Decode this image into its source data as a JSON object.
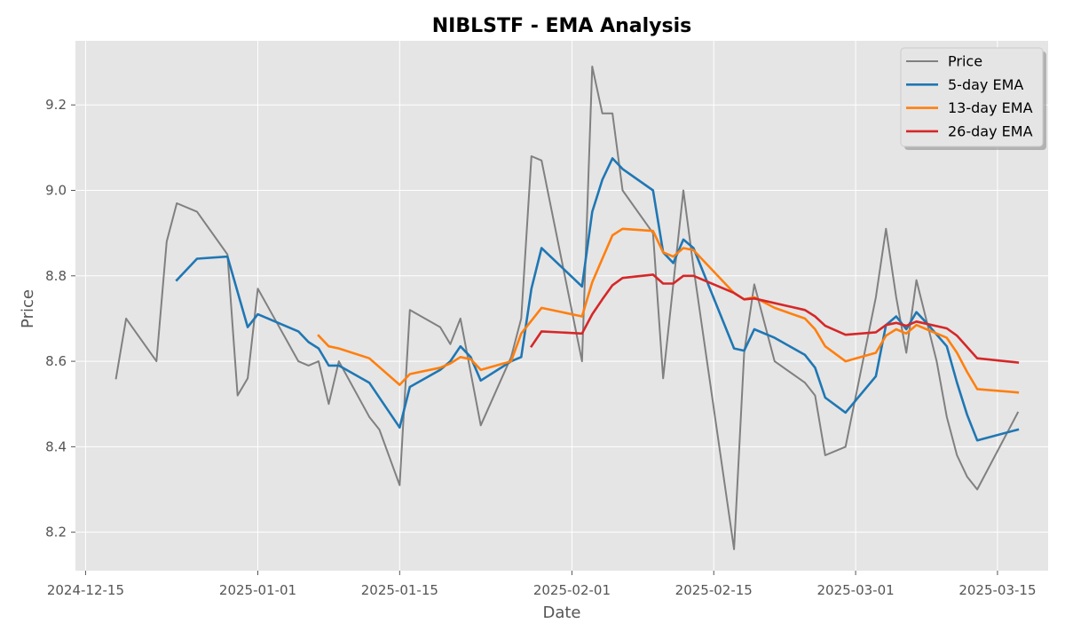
{
  "chart_data": {
    "type": "line",
    "title": "NIBLSTF - EMA Analysis",
    "xlabel": "Date",
    "ylabel": "Price",
    "x_tick_labels": [
      {
        "date": "2024-12-15",
        "label": "2024-12-15"
      },
      {
        "date": "2025-01-01",
        "label": "2025-01-01"
      },
      {
        "date": "2025-01-15",
        "label": "2025-01-15"
      },
      {
        "date": "2025-02-01",
        "label": "2025-02-01"
      },
      {
        "date": "2025-02-15",
        "label": "2025-02-15"
      },
      {
        "date": "2025-03-01",
        "label": "2025-03-01"
      },
      {
        "date": "2025-03-15",
        "label": "2025-03-15"
      }
    ],
    "y_ticks": [
      {
        "value": 8.2,
        "label": "8.2"
      },
      {
        "value": 8.4,
        "label": "8.4"
      },
      {
        "value": 8.6,
        "label": "8.6"
      },
      {
        "value": 8.8,
        "label": "8.8"
      },
      {
        "value": 9.0,
        "label": "9.0"
      },
      {
        "value": 9.2,
        "label": "9.2"
      }
    ],
    "xlim": [
      "2024-12-14",
      "2025-03-20"
    ],
    "ylim": [
      8.11,
      9.35
    ],
    "grid": true,
    "legend_position": "top-right",
    "series": [
      {
        "name": "Price",
        "color": "#808080",
        "points": [
          [
            "2024-12-18",
            8.56
          ],
          [
            "2024-12-19",
            8.7
          ],
          [
            "2024-12-22",
            8.6
          ],
          [
            "2024-12-23",
            8.88
          ],
          [
            "2024-12-24",
            8.97
          ],
          [
            "2024-12-26",
            8.95
          ],
          [
            "2024-12-29",
            8.85
          ],
          [
            "2024-12-30",
            8.52
          ],
          [
            "2024-12-31",
            8.56
          ],
          [
            "2025-01-01",
            8.77
          ],
          [
            "2025-01-05",
            8.6
          ],
          [
            "2025-01-06",
            8.59
          ],
          [
            "2025-01-07",
            8.6
          ],
          [
            "2025-01-08",
            8.5
          ],
          [
            "2025-01-09",
            8.6
          ],
          [
            "2025-01-12",
            8.47
          ],
          [
            "2025-01-13",
            8.44
          ],
          [
            "2025-01-15",
            8.31
          ],
          [
            "2025-01-16",
            8.72
          ],
          [
            "2025-01-19",
            8.68
          ],
          [
            "2025-01-20",
            8.64
          ],
          [
            "2025-01-21",
            8.7
          ],
          [
            "2025-01-23",
            8.45
          ],
          [
            "2025-01-26",
            8.61
          ],
          [
            "2025-01-27",
            8.7
          ],
          [
            "2025-01-28",
            9.08
          ],
          [
            "2025-01-29",
            9.07
          ],
          [
            "2025-02-02",
            8.6
          ],
          [
            "2025-02-03",
            9.29
          ],
          [
            "2025-02-04",
            9.18
          ],
          [
            "2025-02-05",
            9.18
          ],
          [
            "2025-02-06",
            9.0
          ],
          [
            "2025-02-09",
            8.9
          ],
          [
            "2025-02-10",
            8.56
          ],
          [
            "2025-02-12",
            9.0
          ],
          [
            "2025-02-13",
            8.82
          ],
          [
            "2025-02-17",
            8.16
          ],
          [
            "2025-02-18",
            8.62
          ],
          [
            "2025-02-19",
            8.78
          ],
          [
            "2025-02-21",
            8.6
          ],
          [
            "2025-02-24",
            8.55
          ],
          [
            "2025-02-25",
            8.52
          ],
          [
            "2025-02-26",
            8.38
          ],
          [
            "2025-02-28",
            8.4
          ],
          [
            "2025-03-03",
            8.75
          ],
          [
            "2025-03-04",
            8.91
          ],
          [
            "2025-03-05",
            8.75
          ],
          [
            "2025-03-06",
            8.62
          ],
          [
            "2025-03-07",
            8.79
          ],
          [
            "2025-03-09",
            8.6
          ],
          [
            "2025-03-10",
            8.47
          ],
          [
            "2025-03-11",
            8.38
          ],
          [
            "2025-03-12",
            8.33
          ],
          [
            "2025-03-13",
            8.3
          ],
          [
            "2025-03-17",
            8.48
          ]
        ]
      },
      {
        "name": "5-day EMA",
        "color": "#1f77b4",
        "points": [
          [
            "2024-12-24",
            8.79
          ],
          [
            "2024-12-26",
            8.84
          ],
          [
            "2024-12-29",
            8.845
          ],
          [
            "2024-12-31",
            8.68
          ],
          [
            "2025-01-01",
            8.71
          ],
          [
            "2025-01-05",
            8.67
          ],
          [
            "2025-01-06",
            8.645
          ],
          [
            "2025-01-07",
            8.63
          ],
          [
            "2025-01-08",
            8.59
          ],
          [
            "2025-01-09",
            8.59
          ],
          [
            "2025-01-12",
            8.55
          ],
          [
            "2025-01-15",
            8.445
          ],
          [
            "2025-01-16",
            8.54
          ],
          [
            "2025-01-19",
            8.58
          ],
          [
            "2025-01-20",
            8.6
          ],
          [
            "2025-01-21",
            8.635
          ],
          [
            "2025-01-22",
            8.61
          ],
          [
            "2025-01-23",
            8.555
          ],
          [
            "2025-01-26",
            8.6
          ],
          [
            "2025-01-27",
            8.61
          ],
          [
            "2025-01-28",
            8.77
          ],
          [
            "2025-01-29",
            8.865
          ],
          [
            "2025-02-02",
            8.775
          ],
          [
            "2025-02-03",
            8.95
          ],
          [
            "2025-02-04",
            9.025
          ],
          [
            "2025-02-05",
            9.075
          ],
          [
            "2025-02-06",
            9.05
          ],
          [
            "2025-02-09",
            9.0
          ],
          [
            "2025-02-10",
            8.855
          ],
          [
            "2025-02-11",
            8.83
          ],
          [
            "2025-02-12",
            8.885
          ],
          [
            "2025-02-13",
            8.865
          ],
          [
            "2025-02-17",
            8.63
          ],
          [
            "2025-02-18",
            8.625
          ],
          [
            "2025-02-19",
            8.675
          ],
          [
            "2025-02-21",
            8.655
          ],
          [
            "2025-02-24",
            8.615
          ],
          [
            "2025-02-25",
            8.585
          ],
          [
            "2025-02-26",
            8.515
          ],
          [
            "2025-02-28",
            8.48
          ],
          [
            "2025-03-03",
            8.565
          ],
          [
            "2025-03-04",
            8.685
          ],
          [
            "2025-03-05",
            8.705
          ],
          [
            "2025-03-06",
            8.675
          ],
          [
            "2025-03-07",
            8.715
          ],
          [
            "2025-03-08",
            8.69
          ],
          [
            "2025-03-10",
            8.635
          ],
          [
            "2025-03-11",
            8.55
          ],
          [
            "2025-03-12",
            8.475
          ],
          [
            "2025-03-13",
            8.415
          ],
          [
            "2025-03-17",
            8.44
          ]
        ]
      },
      {
        "name": "13-day EMA",
        "color": "#ff7f0e",
        "points": [
          [
            "2025-01-07",
            8.66
          ],
          [
            "2025-01-08",
            8.635
          ],
          [
            "2025-01-09",
            8.63
          ],
          [
            "2025-01-12",
            8.607
          ],
          [
            "2025-01-15",
            8.545
          ],
          [
            "2025-01-16",
            8.57
          ],
          [
            "2025-01-19",
            8.585
          ],
          [
            "2025-01-20",
            8.595
          ],
          [
            "2025-01-21",
            8.61
          ],
          [
            "2025-01-22",
            8.605
          ],
          [
            "2025-01-23",
            8.58
          ],
          [
            "2025-01-26",
            8.6
          ],
          [
            "2025-01-27",
            8.665
          ],
          [
            "2025-01-29",
            8.725
          ],
          [
            "2025-02-02",
            8.705
          ],
          [
            "2025-02-03",
            8.785
          ],
          [
            "2025-02-04",
            8.84
          ],
          [
            "2025-02-05",
            8.895
          ],
          [
            "2025-02-06",
            8.91
          ],
          [
            "2025-02-09",
            8.905
          ],
          [
            "2025-02-10",
            8.855
          ],
          [
            "2025-02-11",
            8.845
          ],
          [
            "2025-02-12",
            8.865
          ],
          [
            "2025-02-13",
            8.86
          ],
          [
            "2025-02-17",
            8.76
          ],
          [
            "2025-02-18",
            8.745
          ],
          [
            "2025-02-19",
            8.75
          ],
          [
            "2025-02-21",
            8.725
          ],
          [
            "2025-02-24",
            8.7
          ],
          [
            "2025-02-25",
            8.675
          ],
          [
            "2025-02-26",
            8.635
          ],
          [
            "2025-02-28",
            8.6
          ],
          [
            "2025-03-03",
            8.62
          ],
          [
            "2025-03-04",
            8.66
          ],
          [
            "2025-03-05",
            8.675
          ],
          [
            "2025-03-06",
            8.665
          ],
          [
            "2025-03-07",
            8.685
          ],
          [
            "2025-03-08",
            8.675
          ],
          [
            "2025-03-10",
            8.655
          ],
          [
            "2025-03-11",
            8.62
          ],
          [
            "2025-03-12",
            8.575
          ],
          [
            "2025-03-13",
            8.535
          ],
          [
            "2025-03-17",
            8.527
          ]
        ]
      },
      {
        "name": "26-day EMA",
        "color": "#d62728",
        "points": [
          [
            "2025-01-28",
            8.635
          ],
          [
            "2025-01-29",
            8.67
          ],
          [
            "2025-02-02",
            8.665
          ],
          [
            "2025-02-03",
            8.71
          ],
          [
            "2025-02-04",
            8.745
          ],
          [
            "2025-02-05",
            8.778
          ],
          [
            "2025-02-06",
            8.795
          ],
          [
            "2025-02-09",
            8.803
          ],
          [
            "2025-02-10",
            8.782
          ],
          [
            "2025-02-11",
            8.782
          ],
          [
            "2025-02-12",
            8.8
          ],
          [
            "2025-02-13",
            8.8
          ],
          [
            "2025-02-17",
            8.76
          ],
          [
            "2025-02-18",
            8.745
          ],
          [
            "2025-02-19",
            8.747
          ],
          [
            "2025-02-24",
            8.72
          ],
          [
            "2025-02-25",
            8.705
          ],
          [
            "2025-02-26",
            8.683
          ],
          [
            "2025-02-28",
            8.662
          ],
          [
            "2025-03-03",
            8.668
          ],
          [
            "2025-03-04",
            8.685
          ],
          [
            "2025-03-05",
            8.69
          ],
          [
            "2025-03-06",
            8.683
          ],
          [
            "2025-03-07",
            8.693
          ],
          [
            "2025-03-10",
            8.677
          ],
          [
            "2025-03-11",
            8.66
          ],
          [
            "2025-03-13",
            8.607
          ],
          [
            "2025-03-17",
            8.597
          ]
        ]
      }
    ]
  }
}
